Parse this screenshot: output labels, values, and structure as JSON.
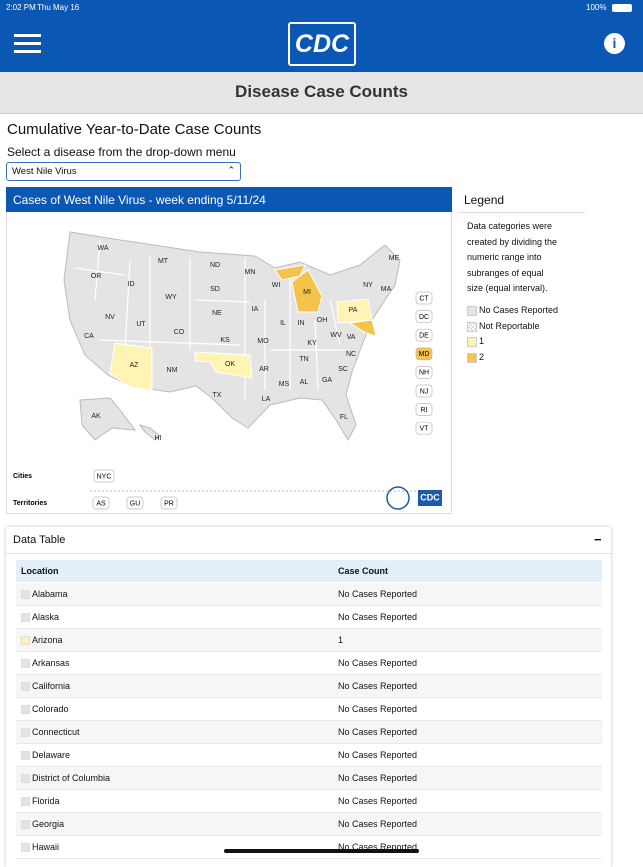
{
  "status_bar": {
    "time": "2:02 PM",
    "date": "Thu May 16",
    "battery": "100%"
  },
  "header": {
    "logo": "CDC",
    "title": "Disease Case Counts"
  },
  "heading": "Cumulative Year-to-Date Case Counts",
  "select_label": "Select a disease from the drop-down menu",
  "select_value": "West Nile Virus",
  "map": {
    "title": "Cases of West Nile Virus - week ending 5/11/24",
    "states": [
      {
        "label": "WA"
      },
      {
        "label": "OR"
      },
      {
        "label": "CA"
      },
      {
        "label": "NV"
      },
      {
        "label": "ID"
      },
      {
        "label": "MT"
      },
      {
        "label": "WY"
      },
      {
        "label": "UT"
      },
      {
        "label": "CO"
      },
      {
        "label": "AZ",
        "category": "1"
      },
      {
        "label": "NM"
      },
      {
        "label": "ND"
      },
      {
        "label": "SD"
      },
      {
        "label": "NE"
      },
      {
        "label": "KS"
      },
      {
        "label": "OK",
        "category": "1"
      },
      {
        "label": "TX"
      },
      {
        "label": "MN"
      },
      {
        "label": "IA"
      },
      {
        "label": "MO"
      },
      {
        "label": "AR"
      },
      {
        "label": "LA"
      },
      {
        "label": "WI"
      },
      {
        "label": "IL"
      },
      {
        "label": "MI",
        "category": "2"
      },
      {
        "label": "IN"
      },
      {
        "label": "OH"
      },
      {
        "label": "KY"
      },
      {
        "label": "TN"
      },
      {
        "label": "MS"
      },
      {
        "label": "AL"
      },
      {
        "label": "GA"
      },
      {
        "label": "FL"
      },
      {
        "label": "SC"
      },
      {
        "label": "NC"
      },
      {
        "label": "VA"
      },
      {
        "label": "WV"
      },
      {
        "label": "PA",
        "category": "1"
      },
      {
        "label": "NY"
      },
      {
        "label": "ME"
      },
      {
        "label": "MA"
      },
      {
        "label": "AK"
      },
      {
        "label": "HI"
      }
    ],
    "side_boxes": [
      {
        "label": "CT"
      },
      {
        "label": "DC"
      },
      {
        "label": "DE"
      },
      {
        "label": "MD",
        "category": "2"
      },
      {
        "label": "NH"
      },
      {
        "label": "NJ"
      },
      {
        "label": "RI"
      },
      {
        "label": "VT"
      }
    ],
    "cities_label": "Cities",
    "cities": [
      "NYC"
    ],
    "territories_label": "Territories",
    "territories": [
      "AS",
      "GU",
      "PR"
    ],
    "footer_logo": "CDC"
  },
  "legend": {
    "title": "Legend",
    "description": "Data categories were created by dividing the numeric range into subranges of equal size (equal interval).",
    "items": [
      {
        "label": "No Cases Reported",
        "color": "#e4e4e4"
      },
      {
        "label": "Not Reportable",
        "color": "hatch"
      },
      {
        "label": "1",
        "color": "#fff4b3"
      },
      {
        "label": "2",
        "color": "#f5c24c"
      }
    ]
  },
  "table": {
    "title": "Data Table",
    "toggle": "−",
    "columns": [
      "Location",
      "Case Count"
    ],
    "rows": [
      [
        "Alabama",
        "No Cases Reported"
      ],
      [
        "Alaska",
        "No Cases Reported"
      ],
      [
        "Arizona",
        "1"
      ],
      [
        "Arkansas",
        "No Cases Reported"
      ],
      [
        "California",
        "No Cases Reported"
      ],
      [
        "Colorado",
        "No Cases Reported"
      ],
      [
        "Connecticut",
        "No Cases Reported"
      ],
      [
        "Delaware",
        "No Cases Reported"
      ],
      [
        "District of Columbia",
        "No Cases Reported"
      ],
      [
        "Florida",
        "No Cases Reported"
      ],
      [
        "Georgia",
        "No Cases Reported"
      ],
      [
        "Hawaii",
        "No Cases Reported"
      ]
    ]
  }
}
